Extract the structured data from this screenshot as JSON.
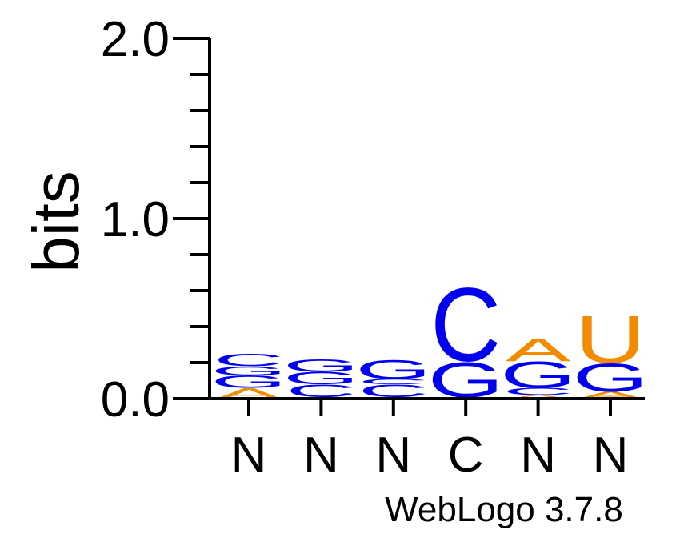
{
  "chart_data": {
    "type": "sequence-logo",
    "ylabel": "bits",
    "ylim": [
      0,
      2
    ],
    "yticks": [
      "0.0",
      "1.0",
      "2.0"
    ],
    "x_tick_labels": [
      "N",
      "N",
      "N",
      "C",
      "N",
      "N"
    ],
    "credit": "WebLogo 3.7.8",
    "colors": {
      "A": "#f28b00",
      "U": "#f28b00",
      "C": "#0000ee",
      "G": "#0000ee"
    },
    "positions": [
      {
        "consensus": "N",
        "stack": [
          {
            "letter": "A",
            "height": 0.06
          },
          {
            "letter": "G",
            "height": 0.07
          },
          {
            "letter": "G",
            "height": 0.05
          },
          {
            "letter": "C",
            "height": 0.07
          }
        ]
      },
      {
        "consensus": "N",
        "stack": [
          {
            "letter": "A",
            "height": 0.01
          },
          {
            "letter": "C",
            "height": 0.07
          },
          {
            "letter": "G",
            "height": 0.07
          },
          {
            "letter": "G",
            "height": 0.07
          }
        ]
      },
      {
        "consensus": "N",
        "stack": [
          {
            "letter": "A",
            "height": 0.01
          },
          {
            "letter": "C",
            "height": 0.07
          },
          {
            "letter": "C",
            "height": 0.03
          },
          {
            "letter": "G",
            "height": 0.11
          }
        ]
      },
      {
        "consensus": "C",
        "stack": [
          {
            "letter": "A",
            "height": 0.01
          },
          {
            "letter": "G",
            "height": 0.2
          },
          {
            "letter": "C",
            "height": 0.42
          }
        ]
      },
      {
        "consensus": "N",
        "stack": [
          {
            "letter": "A",
            "height": 0.02
          },
          {
            "letter": "C",
            "height": 0.04
          },
          {
            "letter": "G",
            "height": 0.15
          },
          {
            "letter": "A",
            "height": 0.13
          }
        ]
      },
      {
        "consensus": "N",
        "stack": [
          {
            "letter": "A",
            "height": 0.04
          },
          {
            "letter": "G",
            "height": 0.16
          },
          {
            "letter": "U",
            "height": 0.27
          }
        ]
      }
    ]
  }
}
